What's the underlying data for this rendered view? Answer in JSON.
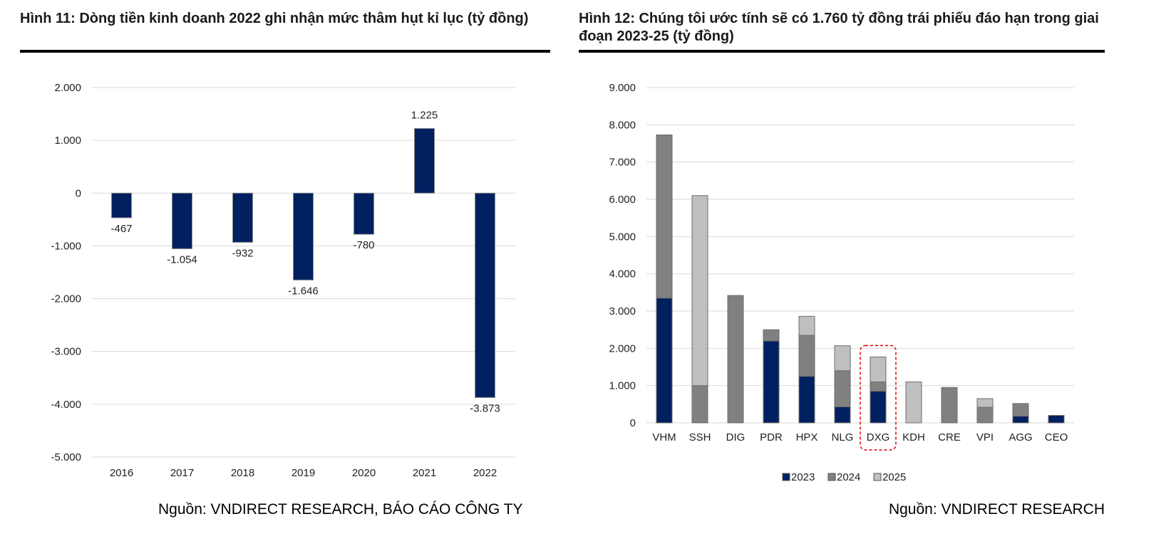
{
  "figure1": {
    "title": "Hình 11: Dòng tiền kinh doanh 2022 ghi nhận mức thâm hụt kỉ lục (tỷ đồng)",
    "source": "Nguồn: VNDIRECT RESEARCH, BÁO CÁO CÔNG TY"
  },
  "figure2": {
    "title": "Hình 12: Chúng tôi ước tính sẽ có 1.760 tỷ đồng trái phiếu đáo hạn trong giai đoạn 2023-25 (tỷ đồng)",
    "source": "Nguồn: VNDIRECT RESEARCH"
  },
  "chart_data": [
    {
      "type": "bar",
      "title": "Hình 11: Dòng tiền kinh doanh 2022 ghi nhận mức thâm hụt kỉ lục (tỷ đồng)",
      "categories": [
        "2016",
        "2017",
        "2018",
        "2019",
        "2020",
        "2021",
        "2022"
      ],
      "values": [
        -467,
        -1054,
        -932,
        -1646,
        -780,
        1225,
        -3873
      ],
      "data_labels": [
        "-467",
        "-1.054",
        "-932",
        "-1.646",
        "-780",
        "1.225",
        "-3.873"
      ],
      "ylim": [
        -5000,
        2000
      ],
      "yticks": [
        2000,
        1000,
        0,
        -1000,
        -2000,
        -3000,
        -4000,
        -5000
      ],
      "ytick_labels": [
        "2.000",
        "1.000",
        "0",
        "-1.000",
        "-2.000",
        "-3.000",
        "-4.000",
        "-5.000"
      ],
      "color": "#002060",
      "grid": true,
      "legend": "none"
    },
    {
      "type": "bar",
      "stacked": true,
      "title": "Hình 12: Chúng tôi ước tính sẽ có 1.760 tỷ đồng trái phiếu đáo hạn trong giai đoạn 2023-25 (tỷ đồng)",
      "categories": [
        "VHM",
        "SSH",
        "DIG",
        "PDR",
        "HPX",
        "NLG",
        "DXG",
        "KDH",
        "CRE",
        "VPI",
        "AGG",
        "CEO"
      ],
      "series": [
        {
          "name": "2023",
          "color": "#002060",
          "values": [
            3350,
            0,
            0,
            2200,
            1250,
            430,
            850,
            0,
            0,
            0,
            180,
            200
          ]
        },
        {
          "name": "2024",
          "color": "#808080",
          "values": [
            4380,
            1000,
            3420,
            300,
            1100,
            970,
            250,
            0,
            950,
            420,
            340,
            0
          ]
        },
        {
          "name": "2025",
          "color": "#bfbfbf",
          "values": [
            0,
            5100,
            0,
            0,
            510,
            670,
            670,
            1100,
            0,
            230,
            0,
            0
          ]
        }
      ],
      "ylim": [
        0,
        9000
      ],
      "yticks": [
        0,
        1000,
        2000,
        3000,
        4000,
        5000,
        6000,
        7000,
        8000,
        9000
      ],
      "ytick_labels": [
        "0",
        "1.000",
        "2.000",
        "3.000",
        "4.000",
        "5.000",
        "6.000",
        "7.000",
        "8.000",
        "9.000"
      ],
      "highlight": "DXG",
      "highlight_color": "#e00000",
      "grid": true,
      "legend": "bottom"
    }
  ]
}
